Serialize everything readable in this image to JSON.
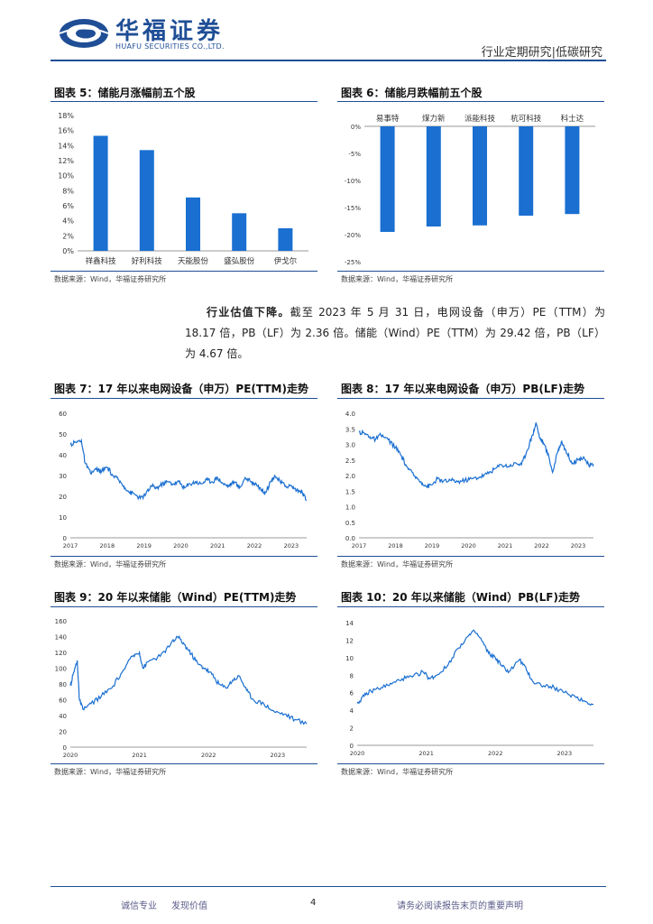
{
  "header": {
    "company_cn": "华福证券",
    "company_en": "HUAFU SECURITIES CO.,LTD.",
    "report_type": "行业定期研究|低碳研究"
  },
  "source_note": "数据来源：Wind，华福证券研究所",
  "figures": {
    "fig5": {
      "title": "图表 5：储能月涨幅前五个股"
    },
    "fig6": {
      "title": "图表 6：储能月跌幅前五个股"
    },
    "fig7": {
      "title": "图表 7：17 年以来电网设备（申万）PE(TTM)走势"
    },
    "fig8": {
      "title": "图表 8：17 年以来电网设备（申万）PB(LF)走势"
    },
    "fig9": {
      "title": "图表 9：20 年以来储能（Wind）PE(TTM)走势"
    },
    "fig10": {
      "title": "图表 10：20 年以来储能（Wind）PB(LF)走势"
    }
  },
  "paragraph": {
    "lead": "行业估值下降。",
    "body": "截至 2023 年 5 月 31 日，电网设备（申万）PE（TTM）为 18.17 倍，PB（LF）为 2.36 倍。储能（Wind）PE（TTM）为 29.42 倍，PB（LF）为 4.67 倍。"
  },
  "chart_data": [
    {
      "id": "fig5",
      "type": "bar",
      "title": "储能月涨幅前五个股",
      "categories": [
        "祥鑫科技",
        "好利科技",
        "天能股份",
        "盛弘股份",
        "伊戈尔"
      ],
      "values": [
        15.3,
        13.4,
        7.1,
        5.0,
        3.0
      ],
      "ylim": [
        0,
        18
      ],
      "yticks": [
        "0%",
        "2%",
        "4%",
        "6%",
        "8%",
        "10%",
        "12%",
        "14%",
        "16%",
        "18%"
      ],
      "color": "#1a6fd1"
    },
    {
      "id": "fig6",
      "type": "bar",
      "title": "储能月跌幅前五个股",
      "categories": [
        "易事特",
        "煤力新",
        "派能科技",
        "杭可科技",
        "科士达"
      ],
      "values": [
        -19.5,
        -18.5,
        -18.3,
        -16.5,
        -16.2
      ],
      "ylim": [
        -25,
        0
      ],
      "yticks": [
        "0%",
        "-5%",
        "-10%",
        "-15%",
        "-20%",
        "-25%"
      ],
      "color": "#1a6fd1"
    },
    {
      "id": "fig7",
      "type": "line",
      "title": "17 年以来电网设备（申万）PE(TTM)走势",
      "x_labels": [
        "2017",
        "2018",
        "2019",
        "2020",
        "2021",
        "2022",
        "2023"
      ],
      "x_range": [
        2017.0,
        2023.42
      ],
      "yticks": [
        "0",
        "10",
        "20",
        "30",
        "40",
        "50",
        "60"
      ],
      "ylim": [
        0,
        60
      ],
      "points": [
        [
          2017.0,
          45
        ],
        [
          2017.15,
          46
        ],
        [
          2017.3,
          47
        ],
        [
          2017.4,
          36
        ],
        [
          2017.55,
          31
        ],
        [
          2017.7,
          33
        ],
        [
          2017.85,
          32
        ],
        [
          2018.0,
          34
        ],
        [
          2018.15,
          30
        ],
        [
          2018.3,
          28
        ],
        [
          2018.45,
          25
        ],
        [
          2018.6,
          22
        ],
        [
          2018.75,
          21
        ],
        [
          2018.9,
          19
        ],
        [
          2019.05,
          21
        ],
        [
          2019.2,
          25
        ],
        [
          2019.35,
          24
        ],
        [
          2019.5,
          26
        ],
        [
          2019.65,
          27
        ],
        [
          2019.8,
          26
        ],
        [
          2019.95,
          27
        ],
        [
          2020.1,
          24
        ],
        [
          2020.25,
          26
        ],
        [
          2020.4,
          27
        ],
        [
          2020.55,
          26
        ],
        [
          2020.7,
          28
        ],
        [
          2020.85,
          27
        ],
        [
          2021.0,
          29
        ],
        [
          2021.15,
          26
        ],
        [
          2021.3,
          25
        ],
        [
          2021.45,
          27
        ],
        [
          2021.6,
          24
        ],
        [
          2021.75,
          29
        ],
        [
          2021.9,
          27
        ],
        [
          2022.05,
          26
        ],
        [
          2022.2,
          23
        ],
        [
          2022.3,
          22
        ],
        [
          2022.45,
          27
        ],
        [
          2022.55,
          30
        ],
        [
          2022.7,
          27
        ],
        [
          2022.85,
          25
        ],
        [
          2023.0,
          25
        ],
        [
          2023.15,
          23
        ],
        [
          2023.3,
          22
        ],
        [
          2023.42,
          18.2
        ]
      ],
      "color": "#1a6fd1"
    },
    {
      "id": "fig8",
      "type": "line",
      "title": "17 年以来电网设备（申万）PB(LF)走势",
      "x_labels": [
        "2017",
        "2018",
        "2019",
        "2020",
        "2021",
        "2022",
        "2023"
      ],
      "x_range": [
        2017.0,
        2023.42
      ],
      "yticks": [
        "0.0",
        "0.5",
        "1.0",
        "1.5",
        "2.0",
        "2.5",
        "3.0",
        "3.5",
        "4.0"
      ],
      "ylim": [
        0,
        4
      ],
      "points": [
        [
          2017.0,
          3.4
        ],
        [
          2017.15,
          3.35
        ],
        [
          2017.3,
          3.25
        ],
        [
          2017.45,
          3.15
        ],
        [
          2017.6,
          3.3
        ],
        [
          2017.8,
          3.15
        ],
        [
          2018.0,
          2.9
        ],
        [
          2018.15,
          2.65
        ],
        [
          2018.3,
          2.3
        ],
        [
          2018.5,
          2.0
        ],
        [
          2018.7,
          1.8
        ],
        [
          2018.85,
          1.65
        ],
        [
          2019.0,
          1.7
        ],
        [
          2019.15,
          1.9
        ],
        [
          2019.3,
          1.8
        ],
        [
          2019.5,
          1.85
        ],
        [
          2019.7,
          1.8
        ],
        [
          2019.9,
          1.85
        ],
        [
          2020.1,
          1.9
        ],
        [
          2020.3,
          1.95
        ],
        [
          2020.5,
          2.05
        ],
        [
          2020.7,
          2.2
        ],
        [
          2020.9,
          2.35
        ],
        [
          2021.1,
          2.3
        ],
        [
          2021.3,
          2.4
        ],
        [
          2021.45,
          2.35
        ],
        [
          2021.6,
          2.8
        ],
        [
          2021.75,
          3.3
        ],
        [
          2021.85,
          3.7
        ],
        [
          2021.95,
          3.2
        ],
        [
          2022.05,
          3.05
        ],
        [
          2022.2,
          2.6
        ],
        [
          2022.3,
          2.1
        ],
        [
          2022.45,
          2.8
        ],
        [
          2022.55,
          3.1
        ],
        [
          2022.7,
          2.7
        ],
        [
          2022.85,
          2.4
        ],
        [
          2023.0,
          2.5
        ],
        [
          2023.15,
          2.6
        ],
        [
          2023.3,
          2.3
        ],
        [
          2023.42,
          2.36
        ]
      ],
      "color": "#1a6fd1"
    },
    {
      "id": "fig9",
      "type": "line",
      "title": "20 年以来储能（Wind）PE(TTM)走势",
      "x_labels": [
        "2020",
        "2021",
        "2022",
        "2023"
      ],
      "x_range": [
        2020.0,
        2023.42
      ],
      "yticks": [
        "0",
        "20",
        "40",
        "60",
        "80",
        "100",
        "120",
        "140",
        "160"
      ],
      "ylim": [
        0,
        160
      ],
      "points": [
        [
          2020.0,
          78
        ],
        [
          2020.05,
          95
        ],
        [
          2020.1,
          110
        ],
        [
          2020.13,
          60
        ],
        [
          2020.18,
          48
        ],
        [
          2020.3,
          55
        ],
        [
          2020.45,
          65
        ],
        [
          2020.6,
          75
        ],
        [
          2020.75,
          95
        ],
        [
          2020.9,
          115
        ],
        [
          2021.0,
          120
        ],
        [
          2021.05,
          100
        ],
        [
          2021.15,
          110
        ],
        [
          2021.3,
          115
        ],
        [
          2021.45,
          130
        ],
        [
          2021.55,
          140
        ],
        [
          2021.65,
          130
        ],
        [
          2021.75,
          118
        ],
        [
          2021.85,
          105
        ],
        [
          2021.95,
          100
        ],
        [
          2022.05,
          92
        ],
        [
          2022.15,
          80
        ],
        [
          2022.25,
          75
        ],
        [
          2022.35,
          85
        ],
        [
          2022.45,
          90
        ],
        [
          2022.55,
          72
        ],
        [
          2022.65,
          60
        ],
        [
          2022.8,
          55
        ],
        [
          2022.95,
          45
        ],
        [
          2023.1,
          42
        ],
        [
          2023.25,
          35
        ],
        [
          2023.42,
          29.4
        ]
      ],
      "color": "#1a6fd1"
    },
    {
      "id": "fig10",
      "type": "line",
      "title": "20 年以来储能（Wind）PB(LF)走势",
      "x_labels": [
        "2020",
        "2021",
        "2022",
        "2023"
      ],
      "x_range": [
        2020.0,
        2023.42
      ],
      "yticks": [
        "0",
        "2",
        "4",
        "6",
        "8",
        "10",
        "12",
        "14"
      ],
      "ylim": [
        0,
        14
      ],
      "points": [
        [
          2020.0,
          4.8
        ],
        [
          2020.1,
          5.6
        ],
        [
          2020.2,
          6.2
        ],
        [
          2020.35,
          6.6
        ],
        [
          2020.5,
          7.0
        ],
        [
          2020.65,
          7.6
        ],
        [
          2020.8,
          7.8
        ],
        [
          2020.95,
          8.4
        ],
        [
          2021.05,
          7.6
        ],
        [
          2021.15,
          8.0
        ],
        [
          2021.3,
          9.0
        ],
        [
          2021.45,
          11.0
        ],
        [
          2021.6,
          12.4
        ],
        [
          2021.7,
          13.0
        ],
        [
          2021.8,
          12.0
        ],
        [
          2021.9,
          10.5
        ],
        [
          2022.0,
          10.0
        ],
        [
          2022.1,
          9.0
        ],
        [
          2022.2,
          8.4
        ],
        [
          2022.35,
          9.8
        ],
        [
          2022.45,
          8.6
        ],
        [
          2022.55,
          7.2
        ],
        [
          2022.7,
          6.8
        ],
        [
          2022.85,
          6.6
        ],
        [
          2023.0,
          6.0
        ],
        [
          2023.15,
          5.6
        ],
        [
          2023.3,
          5.0
        ],
        [
          2023.42,
          4.67
        ]
      ],
      "color": "#1a6fd1"
    }
  ],
  "footer": {
    "left1": "诚信专业",
    "left2": "发现价值",
    "page_number": "4",
    "right": "请务必阅读报告末页的重要声明"
  }
}
